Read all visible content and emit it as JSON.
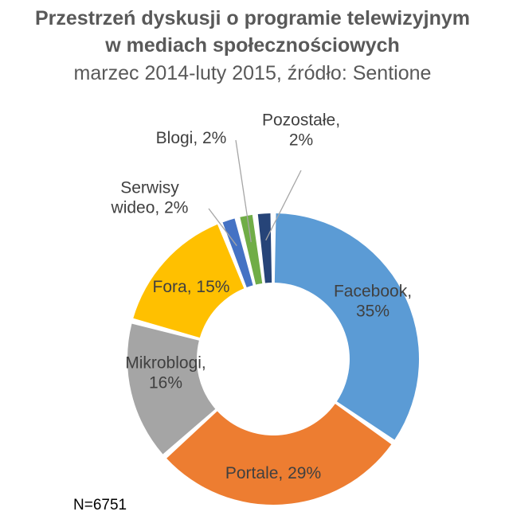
{
  "chart_data": {
    "type": "pie",
    "donut": true,
    "title_lines": [
      "Przestrzeń dyskusji o programie telewizyjnym",
      "w mediach społecznościowych"
    ],
    "subtitle": "marzec 2014-luty 2015, źródło: Sentione",
    "categories": [
      "Facebook",
      "Portale",
      "Mikroblogi",
      "Fora",
      "Serwisy wideo",
      "Blogi",
      "Pozostałe"
    ],
    "values": [
      35,
      29,
      16,
      15,
      2,
      2,
      2
    ],
    "value_unit": "%",
    "colors": [
      "#5B9BD5",
      "#ED7D31",
      "#A5A5A5",
      "#FFC000",
      "#4472C4",
      "#70AD47",
      "#264478"
    ],
    "labels": [
      {
        "lines": [
          "Facebook,",
          "35%"
        ]
      },
      {
        "lines": [
          "Portale, 29%"
        ]
      },
      {
        "lines": [
          "Mikroblogi,",
          "16%"
        ]
      },
      {
        "lines": [
          "Fora, 15%"
        ]
      },
      {
        "lines": [
          "Serwisy",
          "wideo, 2%"
        ]
      },
      {
        "lines": [
          "Blogi, 2%"
        ]
      },
      {
        "lines": [
          "Pozostałe,",
          "2%"
        ]
      }
    ],
    "legend": "none",
    "note": "N=6751"
  }
}
